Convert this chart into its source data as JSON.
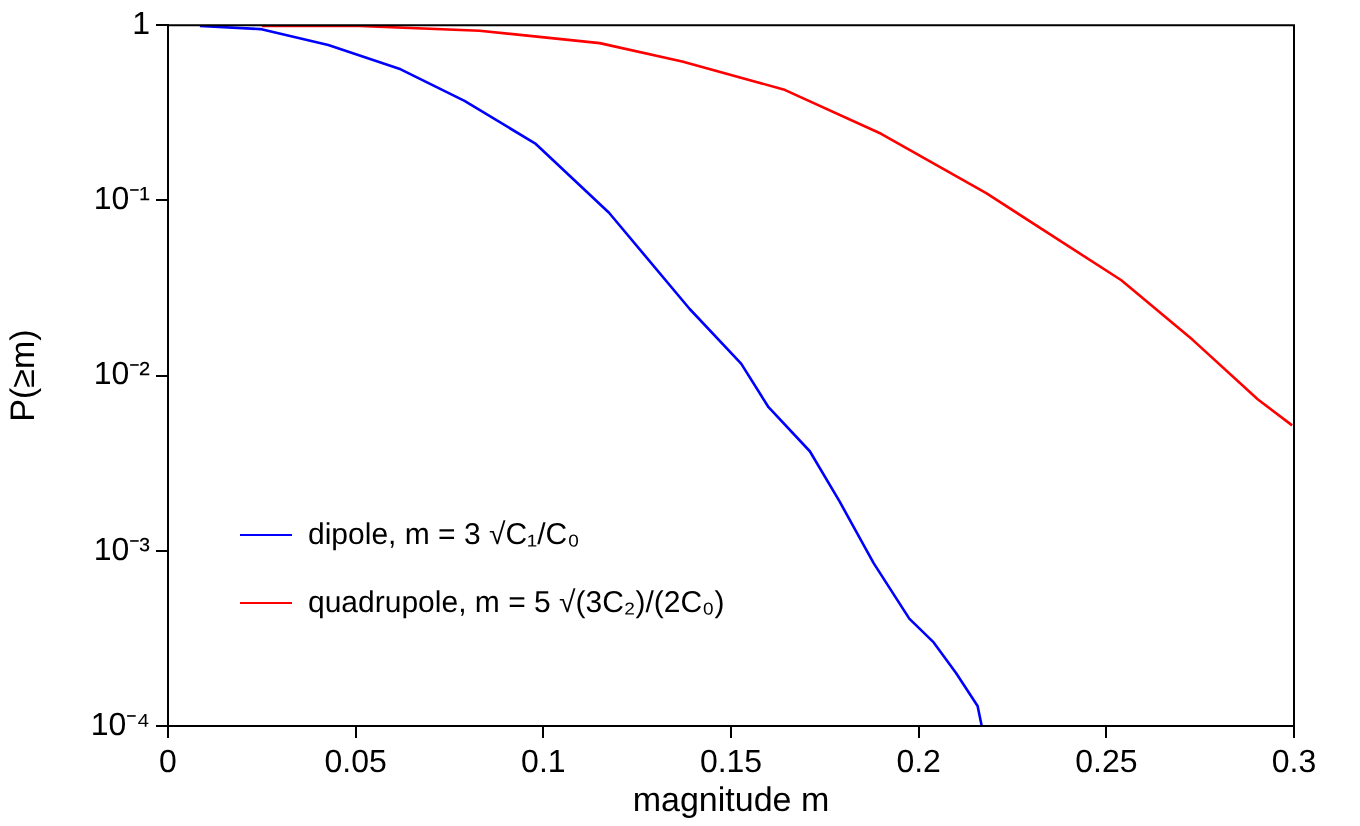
{
  "chart_data": {
    "type": "line",
    "xlabel": "magnitude m",
    "ylabel": "P(≥m)",
    "log": "y",
    "legend": "bottom left",
    "grid": false,
    "marker": "none",
    "xlim": [
      0,
      0.3
    ],
    "xticks": [
      0,
      0.05,
      0.1,
      0.15,
      0.2,
      0.25,
      0.3
    ],
    "ylim": [
      0.0001,
      1
    ],
    "yticks": [
      {
        "value": 0.0001,
        "label": "10⁻⁴"
      },
      {
        "value": 0.001,
        "label": "10⁻³"
      },
      {
        "value": 0.01,
        "label": "10⁻²"
      },
      {
        "value": 0.1,
        "label": "10⁻¹"
      },
      1
    ],
    "series": [
      {
        "name": "dipole, m = 3 √C₁/C₀",
        "color": "#0000ff",
        "x": [
          0.0085,
          0.0246,
          0.0427,
          0.062,
          0.079,
          0.098,
          0.1175,
          0.139,
          0.1527,
          0.16,
          0.171,
          0.179,
          0.188,
          0.1975,
          0.204,
          0.21,
          0.2157,
          0.2168
        ],
        "values": [
          0.99,
          0.95,
          0.77,
          0.56,
          0.37,
          0.21,
          0.085,
          0.024,
          0.0117,
          0.0066,
          0.0037,
          0.0019,
          0.00085,
          0.00041,
          0.0003,
          0.0002,
          0.00013,
          0.0001
        ]
      },
      {
        "name": "quadrupole, m = 5 √(3C₂)/(2C₀)",
        "color": "#ff0000",
        "x": [
          0.025,
          0.051,
          0.083,
          0.115,
          0.137,
          0.164,
          0.19,
          0.218,
          0.254,
          0.273,
          0.2904,
          0.2995
        ],
        "values": [
          0.99,
          0.99,
          0.93,
          0.79,
          0.62,
          0.43,
          0.24,
          0.11,
          0.035,
          0.016,
          0.0073,
          0.0052
        ]
      }
    ]
  }
}
